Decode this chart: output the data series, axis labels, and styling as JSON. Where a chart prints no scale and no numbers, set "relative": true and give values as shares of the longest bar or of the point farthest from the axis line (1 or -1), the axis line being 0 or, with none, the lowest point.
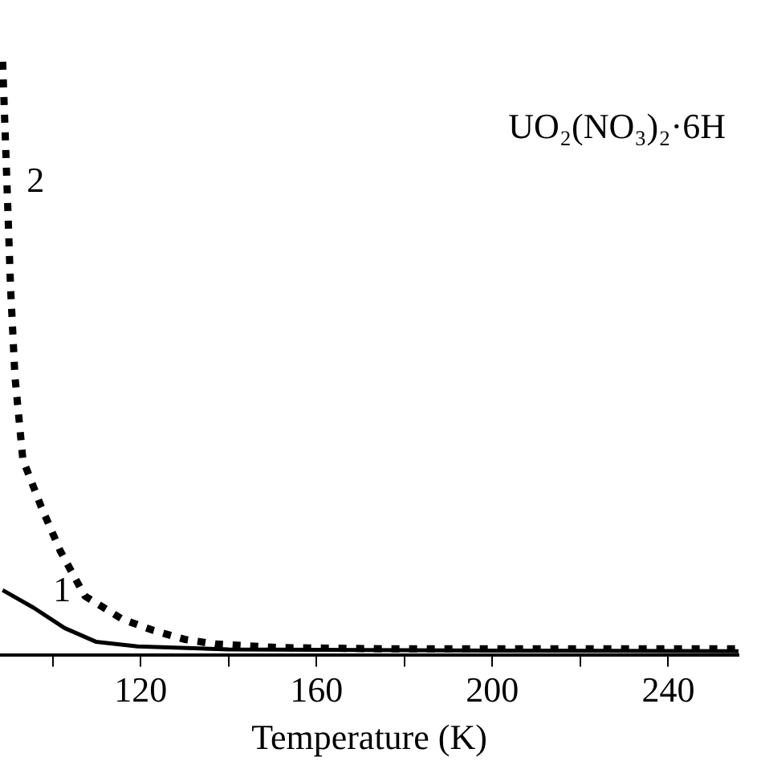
{
  "chart_data": {
    "type": "line",
    "title": "UO₂(NO₃)₂·6H",
    "xlabel": "Temperature (K)",
    "relative": true,
    "xlim": [
      88,
      256
    ],
    "xticks": [
      {
        "value": 100,
        "label": null
      },
      120,
      {
        "value": 140,
        "label": null
      },
      160,
      {
        "value": 180,
        "label": null
      },
      200,
      {
        "value": 220,
        "label": null
      },
      240
    ],
    "grid": false,
    "legend": false,
    "marker": "none",
    "series": [
      {
        "name": "1",
        "color": "#000000",
        "line_style": "solid",
        "x": [
          88.6,
          95.7,
          102.7,
          109.8,
          119.3,
          140,
          200,
          256
        ],
        "values": [
          0.11,
          0.08,
          0.046,
          0.023,
          0.015,
          0.01,
          0.008,
          0.007
        ]
      },
      {
        "name": "2",
        "color": "#000000",
        "line_style": "dashed",
        "x": [
          88.6,
          89.7,
          90.4,
          91.4,
          93.2,
          97.4,
          101.7,
          107.3,
          115.8,
          122.9,
          130,
          137,
          152,
          177,
          256
        ],
        "values": [
          1,
          0.77,
          0.62,
          0.47,
          0.33,
          0.25,
          0.176,
          0.1,
          0.061,
          0.042,
          0.027,
          0.019,
          0.013,
          0.011,
          0.011
        ]
      }
    ]
  }
}
